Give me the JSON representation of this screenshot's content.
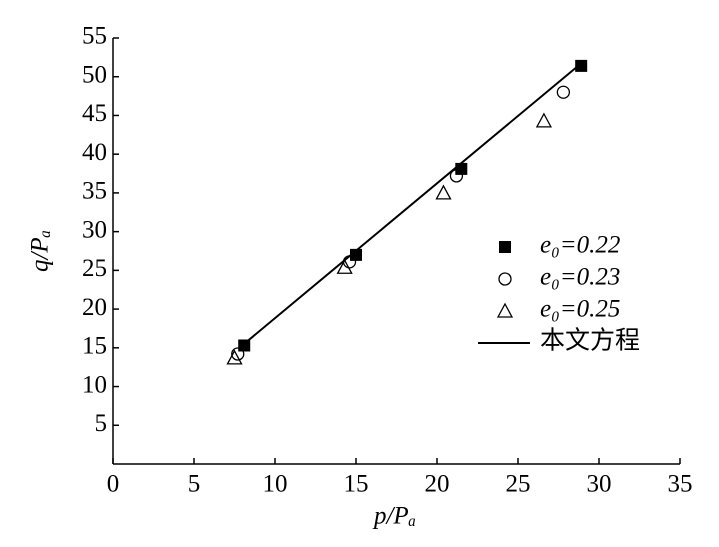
{
  "chart_data": {
    "type": "scatter",
    "x_label": "p/Pₐ",
    "y_label": "q/Pₐ",
    "xlim": [
      0,
      35
    ],
    "xticks": [
      0,
      5,
      10,
      15,
      20,
      25,
      30,
      35
    ],
    "ylim": [
      0,
      55
    ],
    "yticks": [
      5,
      10,
      15,
      20,
      25,
      30,
      35,
      40,
      45,
      50,
      55
    ],
    "legend": "right",
    "series": [
      {
        "name": "e₀=0.22",
        "color": "#000000",
        "marker": "square",
        "x": [
          8.1,
          15,
          21.5,
          28.9
        ],
        "values": [
          15.3,
          27,
          38.1,
          51.4
        ]
      },
      {
        "name": "e₀=0.23",
        "color": "#000000",
        "marker": "circle",
        "x": [
          7.7,
          14.6,
          21.2,
          27.8
        ],
        "values": [
          14.2,
          26.1,
          37.2,
          48
        ]
      },
      {
        "name": "e₀=0.25",
        "color": "#000000",
        "marker": "triangle",
        "x": [
          7.5,
          14.3,
          20.4,
          26.6
        ],
        "values": [
          13.7,
          25.4,
          35,
          44.3
        ]
      },
      {
        "name": "本文方程",
        "color": "#000000",
        "marker": "line",
        "x": [
          7.8,
          29
        ],
        "values": [
          15,
          51.9
        ]
      }
    ]
  }
}
